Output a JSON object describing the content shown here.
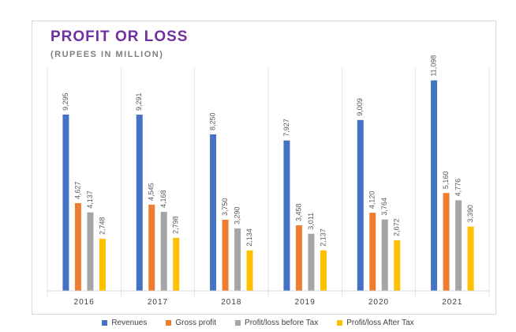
{
  "chart_data": {
    "type": "bar",
    "title": "PROFIT OR LOSS",
    "subtitle": "(RUPEES IN MILLION)",
    "categories": [
      "2016",
      "2017",
      "2018",
      "2019",
      "2020",
      "2021"
    ],
    "series": [
      {
        "name": "Revenues",
        "color": "#4472c4",
        "values": [
          9295,
          9291,
          8250,
          7927,
          9009,
          11098
        ],
        "labels": [
          "9,295",
          "9,291",
          "8,250",
          "7,927",
          "9,009",
          "11,098"
        ]
      },
      {
        "name": "Gross profit",
        "color": "#ed7d31",
        "values": [
          4627,
          4545,
          3750,
          3458,
          4120,
          5160
        ],
        "labels": [
          "4,627",
          "4,545",
          "3,750",
          "3,458",
          "4,120",
          "5,160"
        ]
      },
      {
        "name": "Profit/loss before Tax",
        "color": "#a5a5a5",
        "values": [
          4137,
          4168,
          3290,
          3011,
          3764,
          4776
        ],
        "labels": [
          "4,137",
          "4,168",
          "3,290",
          "3,011",
          "3,764",
          "4,776"
        ]
      },
      {
        "name": "Profit/loss After Tax",
        "color": "#ffc000",
        "values": [
          2748,
          2798,
          2134,
          2137,
          2672,
          3390
        ],
        "labels": [
          "2,748",
          "2,798",
          "2,134",
          "2,137",
          "2,672",
          "3,390"
        ]
      }
    ],
    "ylim": [
      0,
      11500
    ],
    "grid": false,
    "legend_position": "bottom"
  }
}
